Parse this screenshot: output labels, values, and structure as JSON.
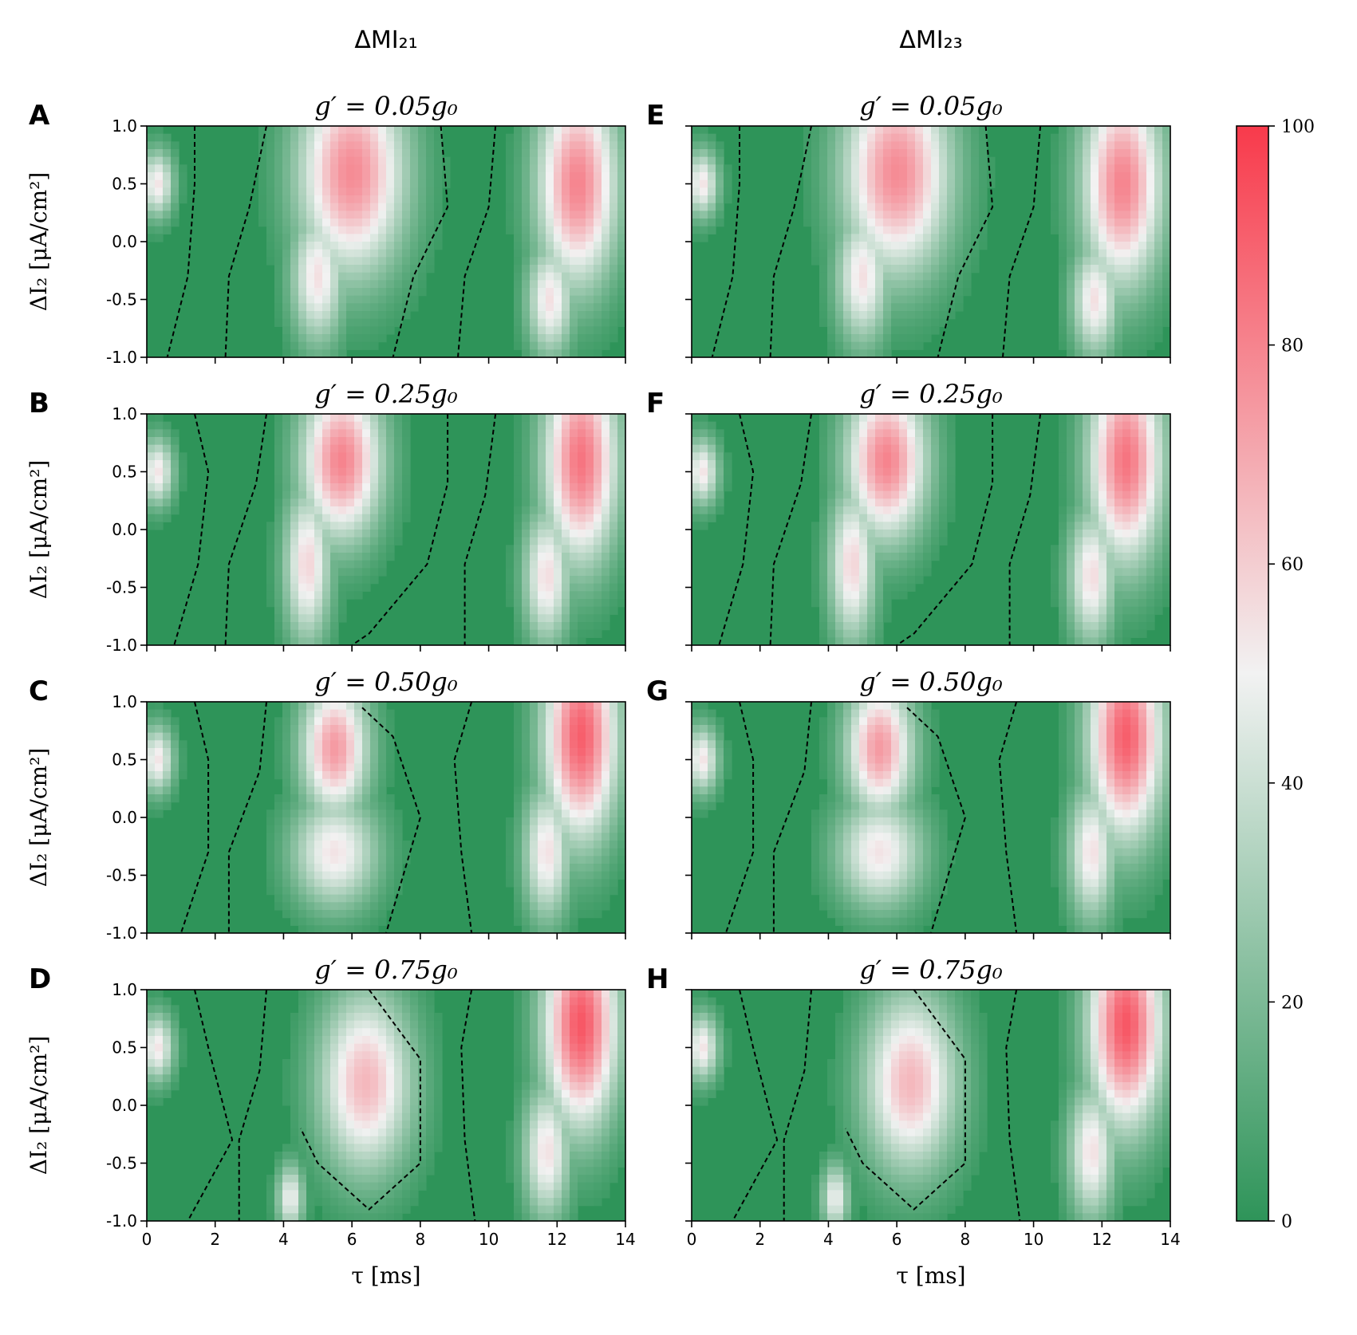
{
  "chart_data": {
    "type": "heatmap",
    "column_titles": [
      "ΔMI₂₁",
      "ΔMI₂₃"
    ],
    "xlabel": "τ [ms]",
    "ylabel": "ΔI₂ [μA/cm²]",
    "xlim": [
      0,
      14
    ],
    "ylim": [
      -1.0,
      1.0
    ],
    "x_ticks": [
      "0",
      "2",
      "4",
      "6",
      "8",
      "10",
      "12",
      "14"
    ],
    "y_ticks": [
      "1.0",
      "0.5",
      "0.0",
      "-0.5",
      "-1.0"
    ],
    "colorbar": {
      "min": 0,
      "max": 100,
      "ticks": [
        "100",
        "80",
        "60",
        "40",
        "20",
        "0"
      ],
      "colors": {
        "low": "#2e9459",
        "mid": "#f2f2f2",
        "high": "#f83a4b"
      },
      "midpoint": 50
    },
    "panels": [
      {
        "letter": "A",
        "title": "g′ = 0.05g₀",
        "column": 0,
        "row": 0,
        "variant": 0
      },
      {
        "letter": "B",
        "title": "g′ = 0.25g₀",
        "column": 0,
        "row": 1,
        "variant": 1
      },
      {
        "letter": "C",
        "title": "g′ = 0.50g₀",
        "column": 0,
        "row": 2,
        "variant": 2
      },
      {
        "letter": "D",
        "title": "g′ = 0.75g₀",
        "column": 0,
        "row": 3,
        "variant": 3
      },
      {
        "letter": "E",
        "title": "g′ = 0.05g₀",
        "column": 1,
        "row": 0,
        "variant": 0
      },
      {
        "letter": "F",
        "title": "g′ = 0.25g₀",
        "column": 1,
        "row": 1,
        "variant": 1
      },
      {
        "letter": "G",
        "title": "g′ = 0.50g₀",
        "column": 1,
        "row": 2,
        "variant": 2
      },
      {
        "letter": "H",
        "title": "g′ = 0.75g₀",
        "column": 1,
        "row": 3,
        "variant": 3
      }
    ],
    "red_regions": [
      [
        {
          "tau": 6.0,
          "dI": 0.6,
          "stau": 1.6,
          "sdI": 0.9,
          "peak": 78
        },
        {
          "tau": 5.0,
          "dI": -0.3,
          "stau": 0.8,
          "sdI": 0.6,
          "peak": 55
        },
        {
          "tau": 12.6,
          "dI": 0.5,
          "stau": 1.2,
          "sdI": 0.9,
          "peak": 80
        },
        {
          "tau": 11.8,
          "dI": -0.5,
          "stau": 0.7,
          "sdI": 0.5,
          "peak": 55
        },
        {
          "tau": 0.3,
          "dI": 0.5,
          "stau": 0.5,
          "sdI": 0.3,
          "peak": 54
        }
      ],
      [
        {
          "tau": 5.7,
          "dI": 0.6,
          "stau": 1.2,
          "sdI": 0.7,
          "peak": 80
        },
        {
          "tau": 4.7,
          "dI": -0.3,
          "stau": 0.7,
          "sdI": 0.7,
          "peak": 58
        },
        {
          "tau": 12.7,
          "dI": 0.6,
          "stau": 1.1,
          "sdI": 0.9,
          "peak": 84
        },
        {
          "tau": 11.7,
          "dI": -0.4,
          "stau": 0.7,
          "sdI": 0.6,
          "peak": 56
        },
        {
          "tau": 0.3,
          "dI": 0.5,
          "stau": 0.5,
          "sdI": 0.3,
          "peak": 54
        }
      ],
      [
        {
          "tau": 5.5,
          "dI": 0.6,
          "stau": 1.0,
          "sdI": 0.6,
          "peak": 74
        },
        {
          "tau": 5.5,
          "dI": -0.3,
          "stau": 1.3,
          "sdI": 0.5,
          "peak": 54
        },
        {
          "tau": 12.7,
          "dI": 0.7,
          "stau": 1.1,
          "sdI": 0.9,
          "peak": 90
        },
        {
          "tau": 11.7,
          "dI": -0.3,
          "stau": 0.7,
          "sdI": 0.6,
          "peak": 55
        },
        {
          "tau": 0.3,
          "dI": 0.5,
          "stau": 0.5,
          "sdI": 0.3,
          "peak": 54
        }
      ],
      [
        {
          "tau": 6.4,
          "dI": 0.2,
          "stau": 1.4,
          "sdI": 0.8,
          "peak": 66
        },
        {
          "tau": 4.2,
          "dI": -0.8,
          "stau": 0.4,
          "sdI": 0.3,
          "peak": 50
        },
        {
          "tau": 12.7,
          "dI": 0.7,
          "stau": 1.1,
          "sdI": 0.9,
          "peak": 92
        },
        {
          "tau": 11.7,
          "dI": -0.4,
          "stau": 0.7,
          "sdI": 0.6,
          "peak": 55
        },
        {
          "tau": 0.3,
          "dI": 0.5,
          "stau": 0.5,
          "sdI": 0.3,
          "peak": 54
        }
      ]
    ],
    "contours": [
      [
        [
          [
            1.4,
            1.0
          ],
          [
            1.4,
            0.5
          ],
          [
            1.2,
            -0.3
          ],
          [
            0.6,
            -1.0
          ]
        ],
        [
          [
            3.5,
            1.0
          ],
          [
            3.0,
            0.3
          ],
          [
            2.4,
            -0.3
          ],
          [
            2.3,
            -1.0
          ]
        ],
        [
          [
            8.6,
            1.0
          ],
          [
            8.8,
            0.3
          ],
          [
            7.8,
            -0.3
          ],
          [
            7.2,
            -1.0
          ]
        ],
        [
          [
            10.2,
            1.0
          ],
          [
            10.0,
            0.3
          ],
          [
            9.3,
            -0.3
          ],
          [
            9.1,
            -1.0
          ]
        ]
      ],
      [
        [
          [
            1.4,
            1.0
          ],
          [
            1.8,
            0.5
          ],
          [
            1.5,
            -0.3
          ],
          [
            0.8,
            -1.0
          ]
        ],
        [
          [
            3.5,
            1.0
          ],
          [
            3.2,
            0.4
          ],
          [
            2.4,
            -0.3
          ],
          [
            2.3,
            -1.0
          ]
        ],
        [
          [
            8.8,
            1.0
          ],
          [
            8.8,
            0.4
          ],
          [
            8.2,
            -0.3
          ],
          [
            6.5,
            -0.9
          ],
          [
            6.0,
            -1.0
          ]
        ],
        [
          [
            10.2,
            1.0
          ],
          [
            9.9,
            0.3
          ],
          [
            9.3,
            -0.3
          ],
          [
            9.3,
            -1.0
          ]
        ]
      ],
      [
        [
          [
            1.4,
            1.0
          ],
          [
            1.8,
            0.5
          ],
          [
            1.8,
            -0.3
          ],
          [
            1.0,
            -1.0
          ]
        ],
        [
          [
            3.5,
            1.0
          ],
          [
            3.3,
            0.4
          ],
          [
            2.4,
            -0.3
          ],
          [
            2.4,
            -1.0
          ]
        ],
        [
          [
            6.3,
            0.95
          ],
          [
            7.2,
            0.7
          ],
          [
            8.0,
            0.0
          ],
          [
            7.2,
            -0.8
          ],
          [
            7.0,
            -1.0
          ]
        ],
        [
          [
            9.5,
            1.0
          ],
          [
            9.0,
            0.5
          ],
          [
            9.2,
            -0.3
          ],
          [
            9.5,
            -1.0
          ]
        ]
      ],
      [
        [
          [
            1.4,
            1.0
          ],
          [
            1.8,
            0.5
          ],
          [
            2.5,
            -0.3
          ],
          [
            1.2,
            -1.0
          ]
        ],
        [
          [
            3.5,
            1.0
          ],
          [
            3.3,
            0.3
          ],
          [
            2.7,
            -0.3
          ],
          [
            2.7,
            -1.0
          ]
        ],
        [
          [
            6.5,
            1.0
          ],
          [
            8.0,
            0.4
          ],
          [
            8.0,
            -0.5
          ],
          [
            6.5,
            -0.9
          ],
          [
            5.0,
            -0.5
          ],
          [
            4.5,
            -0.2
          ]
        ],
        [
          [
            9.5,
            1.0
          ],
          [
            9.2,
            0.5
          ],
          [
            9.3,
            -0.3
          ],
          [
            9.6,
            -1.0
          ]
        ]
      ]
    ]
  }
}
